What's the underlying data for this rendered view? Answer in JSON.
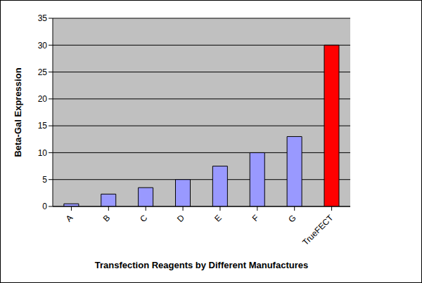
{
  "chart_data": {
    "type": "bar",
    "x_label": "Transfection Reagents by Different Manufactures",
    "y_label": "Beta-Gal Expression",
    "categories": [
      "A",
      "B",
      "C",
      "D",
      "E",
      "F",
      "G",
      "TrueFECT"
    ],
    "values": [
      0.5,
      2.3,
      3.5,
      5,
      7.5,
      10,
      13,
      30
    ],
    "colors": [
      "#9999ff",
      "#9999ff",
      "#9999ff",
      "#9999ff",
      "#9999ff",
      "#9999ff",
      "#9999ff",
      "#ff0000"
    ],
    "ylim": [
      0,
      35
    ],
    "yticks": [
      0,
      5,
      10,
      15,
      20,
      25,
      30,
      35
    ],
    "grid": true
  }
}
